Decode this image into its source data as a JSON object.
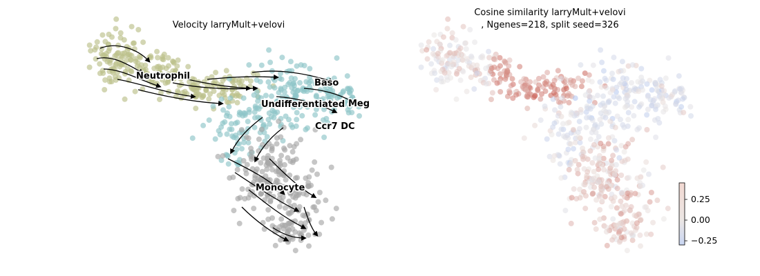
{
  "chart_data": [
    {
      "type": "scatter",
      "subtype": "velocity-stream-embedding",
      "title": "Velocity larryMult+velovi",
      "axes_visible": false,
      "point_colors": {
        "Neutrophil": "#bcc08a",
        "Undifferentiated": "#8ec4c7",
        "Monocyte": "#a8a8a8",
        "stream": "#000000"
      },
      "cluster_labels": [
        {
          "name": "Neutrophil"
        },
        {
          "name": "Baso"
        },
        {
          "name": "Undifferentiated"
        },
        {
          "name": "Meg"
        },
        {
          "name": "Ccr7 DC"
        },
        {
          "name": "Monocyte"
        }
      ]
    },
    {
      "type": "scatter",
      "subtype": "continuous-colormap-embedding",
      "title_line1": "Cosine similarity larryMult+velovi",
      "title_line2": ", Ngenes=218, split seed=326",
      "axes_visible": false,
      "colormap": {
        "low": "#b6c8ef",
        "mid": "#ebe6e4",
        "high": "#c0392b"
      },
      "colorbar": {
        "range": [
          -0.3,
          0.45
        ],
        "ticks": [
          0.25,
          0.0,
          -0.25
        ],
        "tick_labels": [
          "0.25",
          "0.00",
          "−0.25"
        ]
      }
    }
  ]
}
